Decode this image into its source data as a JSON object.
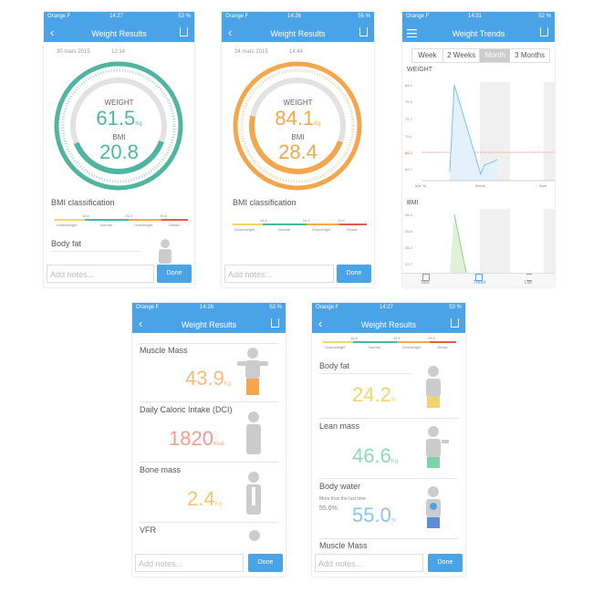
{
  "screens": [
    {
      "status": {
        "carrier": "Orange F",
        "time": "14:27",
        "battery": "53 %"
      },
      "nav_title": "Weight Results",
      "date": "30 mars 2015",
      "clock": "12:14",
      "gauge": {
        "weight_label": "WEIGHT",
        "weight": "61.5",
        "weight_unit": "Kg",
        "bmi_label": "BMI",
        "bmi": "20.8"
      },
      "bmi_section": {
        "title": "BMI classification",
        "ticks": [
          "18.5",
          "24.9",
          "29.9"
        ],
        "classes": [
          "Underweight",
          "Normal",
          "Overweight",
          "Obese"
        ]
      },
      "next_section": "Body fat",
      "notes_placeholder": "Add notes...",
      "done": "Done"
    },
    {
      "status": {
        "carrier": "Orange F",
        "time": "14:26",
        "battery": "55 %"
      },
      "nav_title": "Weight Results",
      "date": "24 mars 2015",
      "clock": "14:44",
      "gauge": {
        "weight_label": "WEIGHT",
        "weight": "84.1",
        "weight_unit": "Kg",
        "bmi_label": "BMI",
        "bmi": "28.4"
      },
      "bmi_section": {
        "title": "BMI classification",
        "ticks": [
          "18.5",
          "24.9",
          "29.9"
        ],
        "classes": [
          "Underweight",
          "Normal",
          "Overweight",
          "Obese"
        ]
      },
      "notes_placeholder": "Add notes...",
      "done": "Done"
    },
    {
      "status": {
        "carrier": "Orange F",
        "time": "14:31",
        "battery": "52 %"
      },
      "nav_title": "Weight Trends",
      "segments": [
        "Week",
        "2 Weeks",
        "Month",
        "3 Months"
      ],
      "weight_chart": {
        "title": "WEIGHT",
        "ylabels": [
          "84.1",
          "79.4",
          "74.7",
          "70.1",
          "65.4",
          "60.7"
        ],
        "xlabels": [
          "Mar 16",
          "March",
          "April"
        ]
      },
      "bmi_chart": {
        "title": "BMI",
        "ylabels": [
          "28.4",
          "26.8",
          "25.3",
          "23.7"
        ]
      },
      "tabs": [
        "Test",
        "Trend",
        "List"
      ]
    },
    {
      "status": {
        "carrier": "Orange F",
        "time": "14:28",
        "battery": "53 %"
      },
      "nav_title": "Weight Results",
      "items": [
        {
          "label": "Muscle Mass",
          "value": "43.9",
          "unit": "Kg"
        },
        {
          "label": "Daily Caloric Intake (DCI)",
          "value": "1820",
          "unit": "Kcal"
        },
        {
          "label": "Bone mass",
          "value": "2.4",
          "unit": "Kg"
        },
        {
          "label": "VFR"
        }
      ],
      "notes_placeholder": "Add notes...",
      "done": "Done"
    },
    {
      "status": {
        "carrier": "Orange F",
        "time": "14:27",
        "battery": "53 %"
      },
      "nav_title": "Weight Results",
      "bmi_section": {
        "ticks": [
          "18.5",
          "24.9",
          "29.9"
        ],
        "classes": [
          "Underweight",
          "Normal",
          "Overweight",
          "Obese"
        ]
      },
      "items": [
        {
          "label": "Body fat",
          "value": "24.2",
          "unit": "%"
        },
        {
          "label": "Lean mass",
          "value": "46.6",
          "unit": "Kg"
        },
        {
          "label": "Body water",
          "note": "More than the last time",
          "note_value": "55.0%",
          "value": "55.0",
          "unit": "%"
        },
        {
          "label": "Muscle Mass"
        }
      ],
      "notes_placeholder": "Add notes...",
      "done": "Done"
    }
  ]
}
